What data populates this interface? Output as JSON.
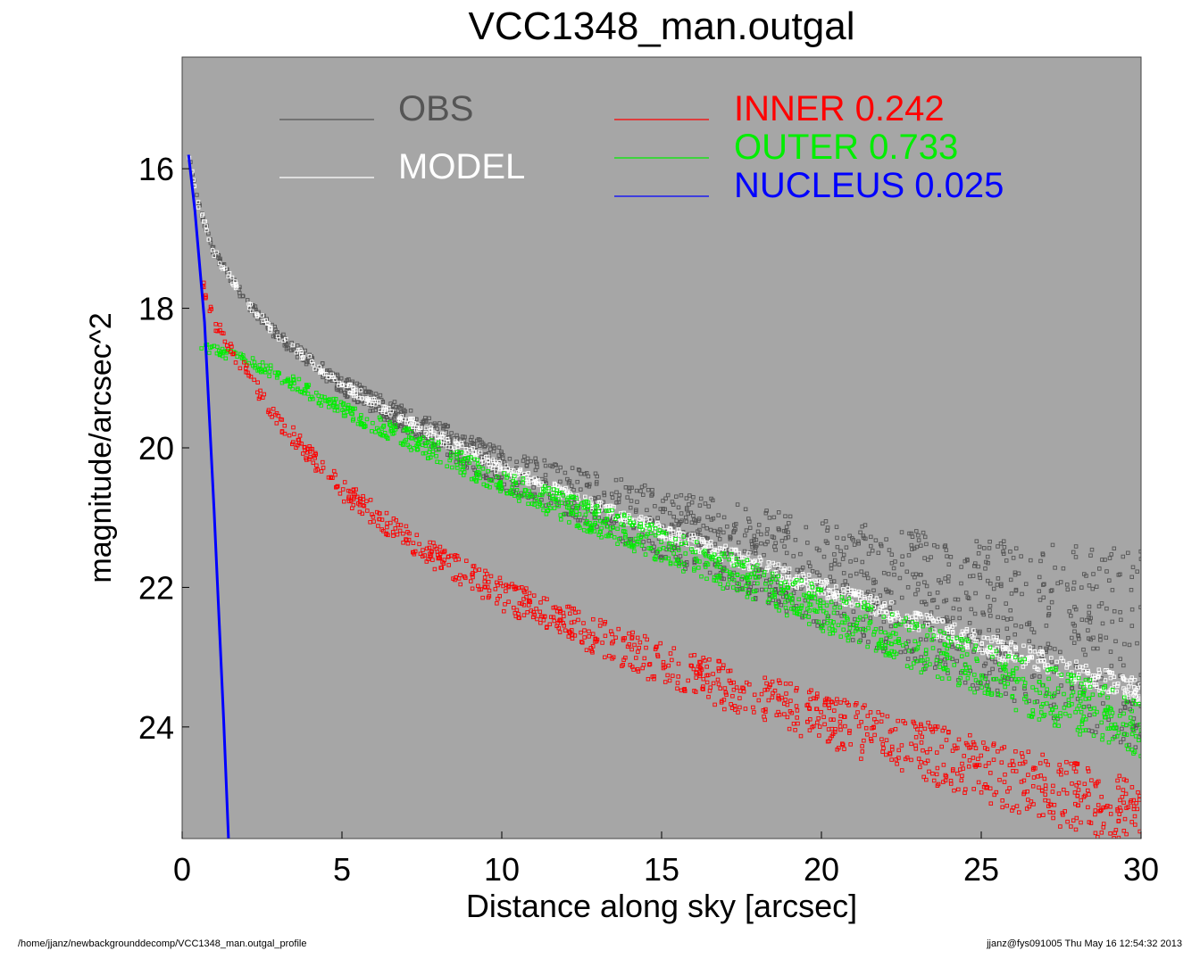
{
  "chart_data": {
    "type": "scatter",
    "title": "VCC1348_man.outgal",
    "xlabel": "Distance along sky [arcsec]",
    "ylabel": "magnitude/arcsec^2",
    "xlim": [
      0,
      30
    ],
    "ylim": [
      25.6,
      14.4
    ],
    "y_inverted": true,
    "x_ticks": [
      0,
      5,
      10,
      15,
      20,
      25,
      30
    ],
    "y_ticks": [
      16,
      18,
      20,
      22,
      24
    ],
    "grid": false,
    "background": "#a6a6a6",
    "legend_placement": "top",
    "legend": [
      {
        "label": "OBS",
        "value": "",
        "color": "#555555"
      },
      {
        "label": "MODEL",
        "value": "",
        "color": "#ffffff"
      },
      {
        "label": "INNER",
        "value": "0.242",
        "color": "#ff0000"
      },
      {
        "label": "OUTER",
        "value": "0.733",
        "color": "#00ee00"
      },
      {
        "label": "NUCLEUS",
        "value": "0.025",
        "color": "#0000ff"
      }
    ],
    "series": [
      {
        "name": "OBS",
        "kind": "points",
        "color": "#555555",
        "x": [
          0.2,
          0.5,
          1,
          2,
          3,
          5,
          7,
          10,
          15,
          20,
          25,
          30
        ],
        "y": [
          15.8,
          16.5,
          17.2,
          17.9,
          18.4,
          19.1,
          19.6,
          20.3,
          21.1,
          21.8,
          22.4,
          22.9
        ]
      },
      {
        "name": "MODEL",
        "kind": "points",
        "color": "#ffffff",
        "x": [
          0.2,
          0.5,
          1,
          2,
          3,
          5,
          7,
          10,
          15,
          20,
          25,
          30
        ],
        "y": [
          15.8,
          16.5,
          17.2,
          17.9,
          18.4,
          19.1,
          19.6,
          20.3,
          21.2,
          22.0,
          22.8,
          23.5
        ]
      },
      {
        "name": "INNER",
        "kind": "points",
        "color": "#ff0000",
        "x": [
          0.6,
          1,
          2,
          3,
          5,
          7,
          10,
          15,
          20,
          25,
          30
        ],
        "y": [
          17.6,
          18.2,
          18.9,
          19.6,
          20.6,
          21.3,
          22.1,
          23.1,
          23.9,
          24.6,
          25.3
        ]
      },
      {
        "name": "OUTER",
        "kind": "points",
        "color": "#00ee00",
        "x": [
          0.6,
          1,
          2,
          3,
          5,
          7,
          10,
          15,
          20,
          25,
          30
        ],
        "y": [
          18.55,
          18.6,
          18.75,
          18.95,
          19.45,
          19.85,
          20.5,
          21.4,
          22.3,
          23.2,
          24.0
        ]
      },
      {
        "name": "NUCLEUS",
        "kind": "line",
        "color": "#0000ff",
        "x": [
          0.2,
          0.4,
          0.7,
          1.0,
          1.3,
          1.45
        ],
        "y": [
          15.8,
          16.6,
          18.2,
          20.9,
          23.9,
          25.6
        ]
      }
    ]
  },
  "footer": {
    "left": "/home/jjanz/newbackgrounddecomp/VCC1348_man.outgal_profile",
    "right": "jjanz@fys091005  Thu May 16 12:54:32 2013"
  }
}
